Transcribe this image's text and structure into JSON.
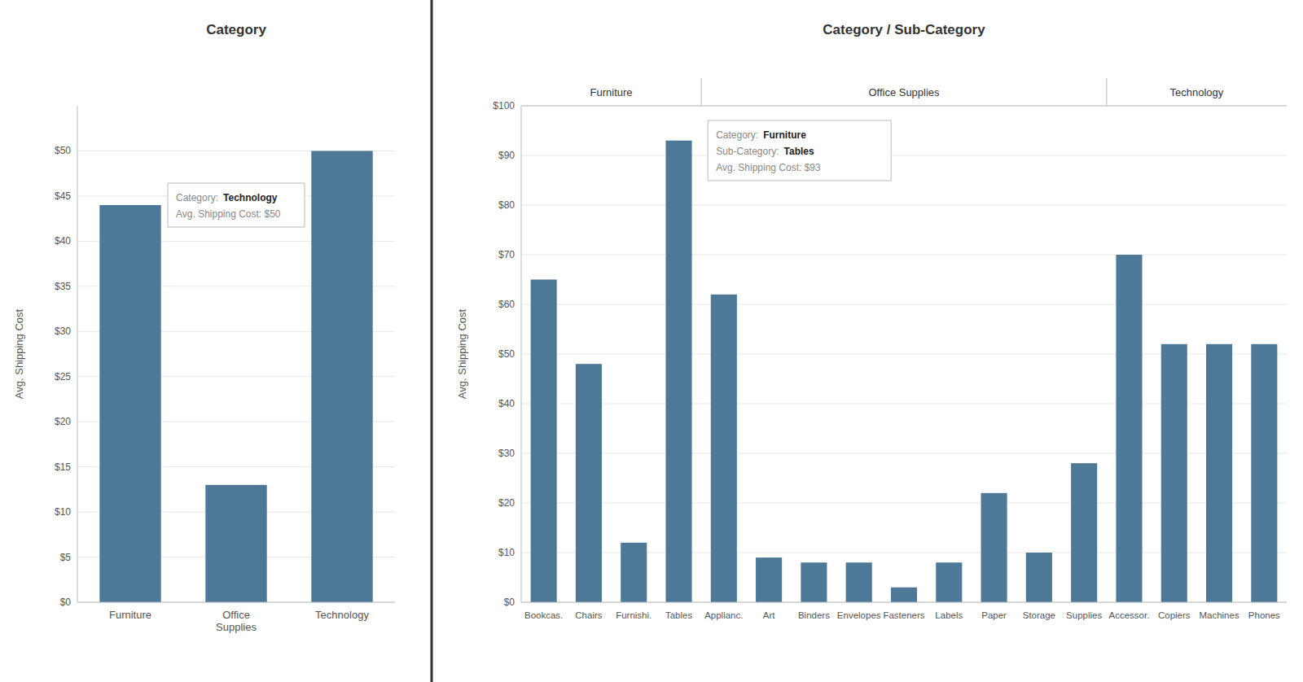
{
  "chart_data": [
    {
      "type": "bar",
      "title": "Category",
      "y_label": "Avg. Shipping Cost",
      "categories": [
        "Furniture",
        "Office\nSupplies",
        "Technology"
      ],
      "values": [
        44,
        13,
        50
      ],
      "color": "#4d7898",
      "ylim": [
        0,
        55
      ],
      "yticks": [
        {
          "value": 0,
          "label": "$0"
        },
        {
          "value": 5,
          "label": "$5"
        },
        {
          "value": 10,
          "label": "$10"
        },
        {
          "value": 15,
          "label": "$15"
        },
        {
          "value": 20,
          "label": "$20"
        },
        {
          "value": 25,
          "label": "$25"
        },
        {
          "value": 30,
          "label": "$30"
        },
        {
          "value": 35,
          "label": "$35"
        },
        {
          "value": 40,
          "label": "$40"
        },
        {
          "value": 45,
          "label": "$45"
        },
        {
          "value": 50,
          "label": "$50"
        }
      ],
      "grid": true,
      "annotations": [
        [
          "Category:",
          "Technology"
        ],
        [
          "Avg. Shipping Cost: $50"
        ]
      ]
    },
    {
      "type": "bar",
      "title": "Category / Sub-Category",
      "y_label": "Avg. Shipping Cost",
      "categories": [
        "Bookcas.",
        "Chairs",
        "Furnishi.",
        "Tables",
        "Applianc.",
        "Art",
        "Binders",
        "Envelopes",
        "Fasteners",
        "Labels",
        "Paper",
        "Storage",
        "Supplies",
        "Accessor.",
        "Copiers",
        "Machines",
        "Phones"
      ],
      "values": [
        65,
        48,
        12,
        93,
        62,
        9,
        8,
        8,
        3,
        8,
        22,
        10,
        28,
        70,
        52,
        52,
        52
      ],
      "groups": [
        {
          "label": "Furniture",
          "start": 0,
          "end": 3
        },
        {
          "label": "Office Supplies",
          "start": 4,
          "end": 12
        },
        {
          "label": "Technology",
          "start": 13,
          "end": 16
        }
      ],
      "color": "#4d7898",
      "ylim": [
        0,
        100
      ],
      "yticks": [
        {
          "value": 0,
          "label": "$0"
        },
        {
          "value": 10,
          "label": "$10"
        },
        {
          "value": 20,
          "label": "$20"
        },
        {
          "value": 30,
          "label": "$30"
        },
        {
          "value": 40,
          "label": "$40"
        },
        {
          "value": 50,
          "label": "$50"
        },
        {
          "value": 60,
          "label": "$60"
        },
        {
          "value": 70,
          "label": "$70"
        },
        {
          "value": 80,
          "label": "$80"
        },
        {
          "value": 90,
          "label": "$90"
        },
        {
          "value": 100,
          "label": "$100"
        }
      ],
      "grid": true,
      "annotations": [
        [
          "Category:",
          "Furniture"
        ],
        [
          "Sub-Category:",
          "Tables"
        ],
        [
          "Avg. Shipping Cost: $93"
        ]
      ]
    }
  ]
}
